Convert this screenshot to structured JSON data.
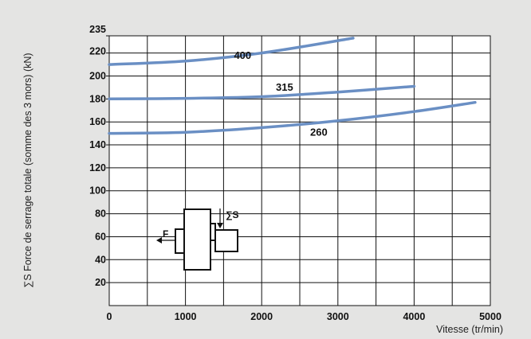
{
  "chart_data": {
    "type": "line",
    "title": "",
    "xlabel": "Vitesse (tr/min)",
    "ylabel": "∑S Force de serrage totale (somme des 3 mors) (kN)",
    "xlim": [
      0,
      5000
    ],
    "ylim": [
      0,
      235
    ],
    "x_ticks": [
      0,
      1000,
      2000,
      3000,
      4000,
      5000
    ],
    "y_ticks": [
      20,
      40,
      60,
      80,
      100,
      120,
      140,
      160,
      180,
      200,
      220,
      235
    ],
    "grid": true,
    "line_color": "#6a8fc4",
    "series": [
      {
        "name": "400",
        "x": [
          0,
          1000,
          2000,
          3200
        ],
        "y": [
          210,
          213,
          220,
          233
        ]
      },
      {
        "name": "315",
        "x": [
          0,
          1000,
          2000,
          3000,
          4000
        ],
        "y": [
          180,
          180.5,
          182,
          186,
          191
        ]
      },
      {
        "name": "260",
        "x": [
          0,
          1000,
          2000,
          3000,
          4000,
          4800
        ],
        "y": [
          150,
          151,
          155,
          161,
          169,
          177
        ]
      }
    ]
  },
  "inset": {
    "force_label": "F",
    "sum_label": "∑S"
  }
}
